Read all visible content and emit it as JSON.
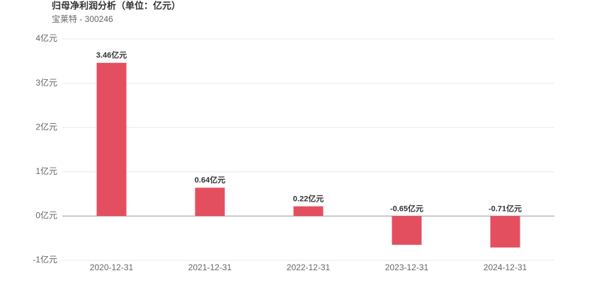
{
  "chart_data": {
    "type": "bar",
    "title": "归母净利润分析（单位：亿元）",
    "subtitle": "宝莱特 - 300246",
    "categories": [
      "2020-12-31",
      "2021-12-31",
      "2022-12-31",
      "2023-12-31",
      "2024-12-31"
    ],
    "values": [
      3.46,
      0.64,
      0.22,
      -0.65,
      -0.71
    ],
    "value_labels": [
      "3.46亿元",
      "0.64亿元",
      "0.22亿元",
      "-0.65亿元",
      "-0.71亿元"
    ],
    "color": "#e44f60",
    "ylim": [
      -1,
      4
    ],
    "yticks": [
      {
        "value": -1,
        "label": "-1亿元"
      },
      {
        "value": 0,
        "label": "0亿元"
      },
      {
        "value": 1,
        "label": "1亿元"
      },
      {
        "value": 2,
        "label": "2亿元"
      },
      {
        "value": 3,
        "label": "3亿元"
      },
      {
        "value": 4,
        "label": "4亿元"
      }
    ],
    "grid": true
  }
}
